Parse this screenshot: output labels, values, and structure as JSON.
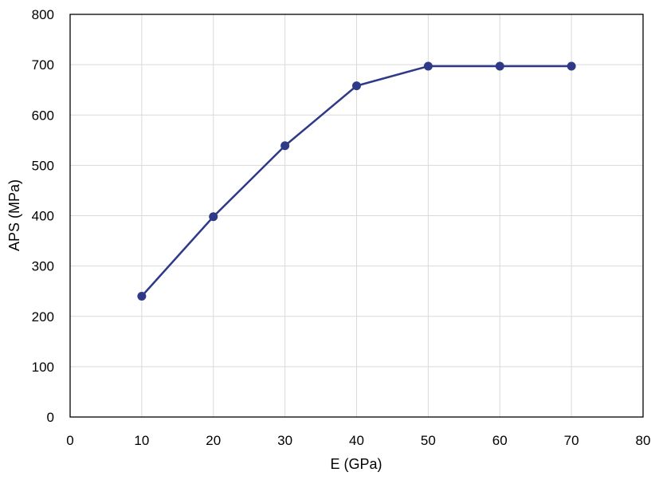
{
  "chart_data": {
    "type": "line",
    "title": "",
    "xlabel": "E (GPa)",
    "ylabel": "APS (MPa)",
    "xlim": [
      0,
      80
    ],
    "ylim": [
      0,
      800
    ],
    "xticks": [
      0,
      10,
      20,
      30,
      40,
      50,
      60,
      70,
      80
    ],
    "yticks": [
      0,
      100,
      200,
      300,
      400,
      500,
      600,
      700,
      800
    ],
    "grid": true,
    "legend": "none",
    "series": [
      {
        "x": [
          10,
          20,
          30,
          40,
          50,
          60,
          70
        ],
        "values": [
          240,
          398,
          539,
          658,
          697,
          697,
          697
        ],
        "color": "#2e3a87",
        "marker": "circle"
      }
    ]
  }
}
